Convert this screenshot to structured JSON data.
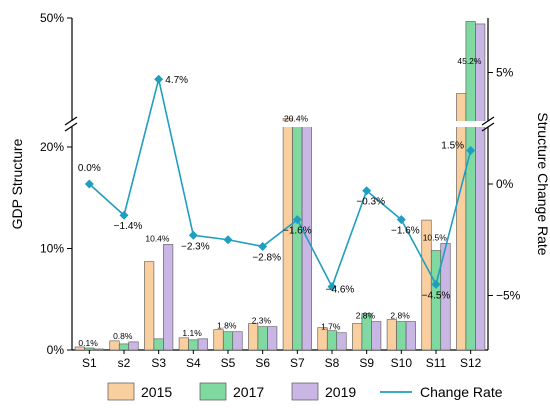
{
  "chart_data": {
    "type": "bar",
    "categories": [
      "S1",
      "s2",
      "S3",
      "S4",
      "S5",
      "S6",
      "S7",
      "S8",
      "S9",
      "S10",
      "S11",
      "S12"
    ],
    "series": [
      {
        "name": "2015",
        "color": "#F9CFA0",
        "values": [
          0.3,
          0.9,
          8.7,
          1.2,
          2.0,
          2.6,
          21.8,
          2.2,
          2.6,
          3.0,
          12.8,
          28.0
        ]
      },
      {
        "name": "2017",
        "color": "#7FD9A0",
        "values": [
          0.2,
          0.6,
          1.1,
          1.0,
          1.8,
          2.3,
          20.2,
          1.9,
          3.6,
          2.8,
          9.8,
          45.8
        ]
      },
      {
        "name": "2019",
        "color": "#C9B6E4",
        "values": [
          0.1,
          0.8,
          10.4,
          1.1,
          1.8,
          2.3,
          20.4,
          1.7,
          2.8,
          2.8,
          10.5,
          45.2
        ]
      }
    ],
    "data_labels": [
      "0.1%",
      "0.8%",
      "10.4%",
      "1.1%",
      "1.8%",
      "2.3%",
      "20.4%",
      "1.7%",
      "2.8%",
      "2.8%",
      "10.5%",
      "45.2%"
    ],
    "line_series": {
      "name": "Change Rate",
      "color": "#1F9EC0",
      "values": [
        0.0,
        -1.4,
        4.7,
        -2.3,
        -2.5,
        -2.8,
        -1.6,
        -4.6,
        -0.3,
        -1.6,
        -4.5,
        1.5
      ],
      "labels": [
        "0.0%",
        "−1.4%",
        "4.7%",
        "−2.3%",
        "",
        "−2.8%",
        "−1.6%",
        "−4.6%",
        "−0.3%",
        "−1.6%",
        "−4.5%",
        "1.5%"
      ]
    },
    "ylabel": "GDP Structure",
    "y2label": "Structure Change Rate",
    "y_ticks": [
      "0%",
      "10%",
      "20%",
      "50%"
    ],
    "y2_ticks": [
      "5%",
      "0%",
      "−5%"
    ],
    "y_axis": "broken",
    "y2lim": [
      -7.2,
      7.2
    ],
    "grid": false,
    "legend_position": "bottom"
  }
}
